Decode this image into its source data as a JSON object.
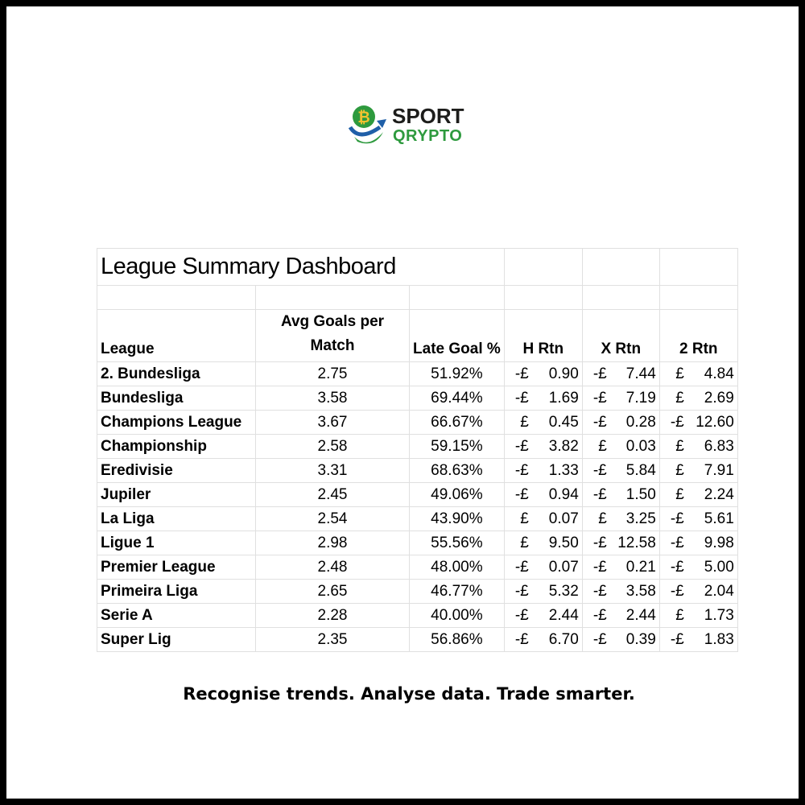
{
  "logo": {
    "line1": "SPORT",
    "line2": "QRYPTO",
    "colors": {
      "green": "#2e9a3e",
      "blue": "#1f5fa8",
      "gold": "#f2c230",
      "dark": "#1d1d1b"
    }
  },
  "table": {
    "title": "League Summary Dashboard",
    "headers": {
      "league": "League",
      "avg_goals_line1": "Avg Goals per",
      "avg_goals_line2": "Match",
      "late_goal": "Late Goal %",
      "h": "H Rtn",
      "x": "X Rtn",
      "two": "2 Rtn"
    },
    "rows": [
      {
        "league": "2. Bundesliga",
        "avg": "2.75",
        "late": "51.92%",
        "h": {
          "sign": "-£",
          "amount": "0.90"
        },
        "x": {
          "sign": "-£",
          "amount": "7.44"
        },
        "two": {
          "sign": "£",
          "amount": "4.84"
        }
      },
      {
        "league": "Bundesliga",
        "avg": "3.58",
        "late": "69.44%",
        "h": {
          "sign": "-£",
          "amount": "1.69"
        },
        "x": {
          "sign": "-£",
          "amount": "7.19"
        },
        "two": {
          "sign": "£",
          "amount": "2.69"
        }
      },
      {
        "league": "Champions League",
        "avg": "3.67",
        "late": "66.67%",
        "h": {
          "sign": "£",
          "amount": "0.45"
        },
        "x": {
          "sign": "-£",
          "amount": "0.28"
        },
        "two": {
          "sign": "-£",
          "amount": "12.60"
        }
      },
      {
        "league": "Championship",
        "avg": "2.58",
        "late": "59.15%",
        "h": {
          "sign": "-£",
          "amount": "3.82"
        },
        "x": {
          "sign": "£",
          "amount": "0.03"
        },
        "two": {
          "sign": "£",
          "amount": "6.83"
        }
      },
      {
        "league": "Eredivisie",
        "avg": "3.31",
        "late": "68.63%",
        "h": {
          "sign": "-£",
          "amount": "1.33"
        },
        "x": {
          "sign": "-£",
          "amount": "5.84"
        },
        "two": {
          "sign": "£",
          "amount": "7.91"
        }
      },
      {
        "league": "Jupiler",
        "avg": "2.45",
        "late": "49.06%",
        "h": {
          "sign": "-£",
          "amount": "0.94"
        },
        "x": {
          "sign": "-£",
          "amount": "1.50"
        },
        "two": {
          "sign": "£",
          "amount": "2.24"
        }
      },
      {
        "league": "La Liga",
        "avg": "2.54",
        "late": "43.90%",
        "h": {
          "sign": "£",
          "amount": "0.07"
        },
        "x": {
          "sign": "£",
          "amount": "3.25"
        },
        "two": {
          "sign": "-£",
          "amount": "5.61"
        }
      },
      {
        "league": "Ligue 1",
        "avg": "2.98",
        "late": "55.56%",
        "h": {
          "sign": "£",
          "amount": "9.50"
        },
        "x": {
          "sign": "-£",
          "amount": "12.58"
        },
        "two": {
          "sign": "-£",
          "amount": "9.98"
        }
      },
      {
        "league": "Premier League",
        "avg": "2.48",
        "late": "48.00%",
        "h": {
          "sign": "-£",
          "amount": "0.07"
        },
        "x": {
          "sign": "-£",
          "amount": "0.21"
        },
        "two": {
          "sign": "-£",
          "amount": "5.00"
        }
      },
      {
        "league": "Primeira Liga",
        "avg": "2.65",
        "late": "46.77%",
        "h": {
          "sign": "-£",
          "amount": "5.32"
        },
        "x": {
          "sign": "-£",
          "amount": "3.58"
        },
        "two": {
          "sign": "-£",
          "amount": "2.04"
        }
      },
      {
        "league": "Serie A",
        "avg": "2.28",
        "late": "40.00%",
        "h": {
          "sign": "-£",
          "amount": "2.44"
        },
        "x": {
          "sign": "-£",
          "amount": "2.44"
        },
        "two": {
          "sign": "£",
          "amount": "1.73"
        }
      },
      {
        "league": "Super Lig",
        "avg": "2.35",
        "late": "56.86%",
        "h": {
          "sign": "-£",
          "amount": "6.70"
        },
        "x": {
          "sign": "-£",
          "amount": "0.39"
        },
        "two": {
          "sign": "-£",
          "amount": "1.83"
        }
      }
    ]
  },
  "tagline": "Recognise trends. Analyse data. Trade smarter."
}
